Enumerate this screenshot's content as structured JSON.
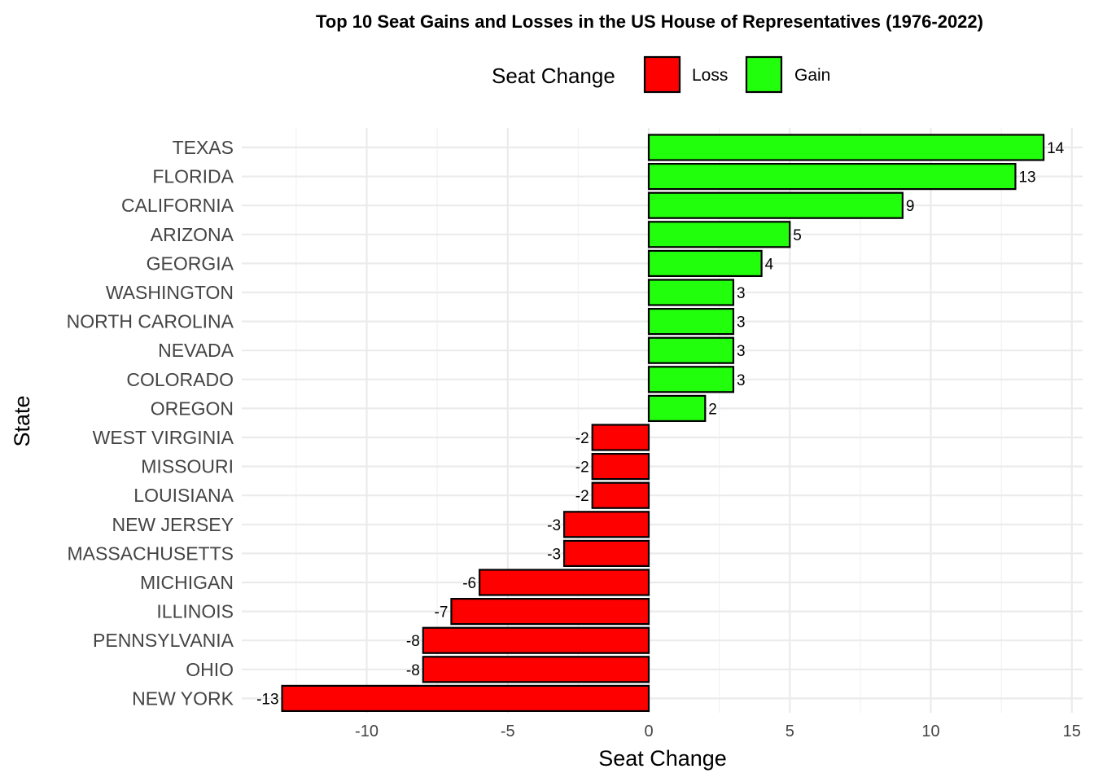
{
  "colors": {
    "loss": "#ff0000",
    "gain": "#22ff0d"
  },
  "chart_data": {
    "type": "bar",
    "orientation": "horizontal",
    "title": "Top 10 Seat Gains and Losses in the US House of Representatives (1976-2022)",
    "xlabel": "Seat Change",
    "ylabel": "State",
    "xlim": [
      -14,
      15.5
    ],
    "xticks": [
      -10,
      -5,
      0,
      5,
      10,
      15
    ],
    "xtick_labels": [
      "-10",
      "-5",
      "0",
      "5",
      "10",
      "15"
    ],
    "grid": true,
    "legend": {
      "title": "Seat Change",
      "position": "top",
      "entries": [
        {
          "label": "Loss",
          "color_key": "loss"
        },
        {
          "label": "Gain",
          "color_key": "gain"
        }
      ]
    },
    "categories": [
      "TEXAS",
      "FLORIDA",
      "CALIFORNIA",
      "ARIZONA",
      "GEORGIA",
      "WASHINGTON",
      "NORTH CAROLINA",
      "NEVADA",
      "COLORADO",
      "OREGON",
      "WEST VIRGINIA",
      "MISSOURI",
      "LOUISIANA",
      "NEW JERSEY",
      "MASSACHUSETTS",
      "MICHIGAN",
      "ILLINOIS",
      "PENNSYLVANIA",
      "OHIO",
      "NEW YORK"
    ],
    "values": [
      14,
      13,
      9,
      5,
      4,
      3,
      3,
      3,
      3,
      2,
      -2,
      -2,
      -2,
      -3,
      -3,
      -6,
      -7,
      -8,
      -8,
      -13
    ],
    "value_labels": [
      "14",
      "13",
      "9",
      "5",
      "4",
      "3",
      "3",
      "3",
      "3",
      "2",
      "-2",
      "-2",
      "-2",
      "-3",
      "-3",
      "-6",
      "-7",
      "-8",
      "-8",
      "-13"
    ]
  }
}
